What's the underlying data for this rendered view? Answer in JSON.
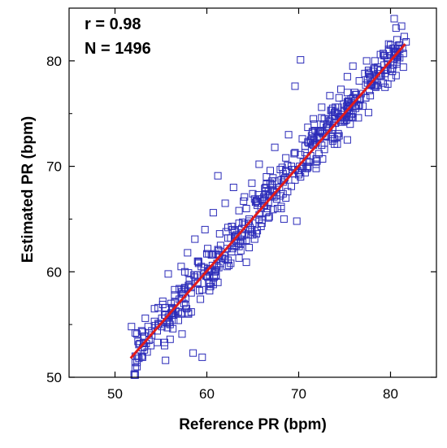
{
  "chart_data": {
    "type": "scatter",
    "title": "",
    "xlabel": "Reference PR (bpm)",
    "ylabel": "Estimated PR (bpm)",
    "xlim": [
      45,
      85
    ],
    "ylim": [
      50,
      85
    ],
    "xticks": [
      50,
      60,
      70,
      80
    ],
    "yticks": [
      50,
      60,
      70,
      80
    ],
    "annotations": [
      "r = 0.98",
      "N = 1496"
    ],
    "marker": "open-square",
    "marker_color": "#2b2bb8",
    "line_color": "#e01b1b",
    "regression_line": {
      "x": [
        51.7,
        81.6
      ],
      "y": [
        51.8,
        81.6
      ]
    },
    "n_points": 1496,
    "points": [
      [
        51.8,
        54.8
      ],
      [
        52.5,
        53.4
      ],
      [
        53.0,
        51.9
      ],
      [
        53.3,
        55.6
      ],
      [
        53.9,
        53.0
      ],
      [
        54.3,
        56.5
      ],
      [
        54.8,
        55.0
      ],
      [
        55.2,
        57.2
      ],
      [
        55.4,
        53.3
      ],
      [
        55.5,
        51.6
      ],
      [
        55.8,
        59.8
      ],
      [
        56.2,
        56.6
      ],
      [
        56.5,
        58.3
      ],
      [
        56.9,
        55.4
      ],
      [
        57.2,
        60.5
      ],
      [
        57.3,
        54.1
      ],
      [
        57.5,
        57.0
      ],
      [
        57.9,
        61.8
      ],
      [
        58.1,
        58.8
      ],
      [
        58.3,
        56.2
      ],
      [
        58.5,
        52.3
      ],
      [
        58.7,
        63.1
      ],
      [
        58.9,
        59.7
      ],
      [
        59.1,
        61.0
      ],
      [
        59.3,
        57.4
      ],
      [
        59.5,
        51.9
      ],
      [
        59.8,
        64.0
      ],
      [
        60.1,
        62.2
      ],
      [
        60.4,
        58.6
      ],
      [
        60.7,
        65.6
      ],
      [
        60.9,
        60.0
      ],
      [
        61.2,
        69.1
      ],
      [
        61.4,
        63.6
      ],
      [
        61.7,
        61.3
      ],
      [
        62.0,
        66.5
      ],
      [
        62.3,
        64.2
      ],
      [
        62.6,
        60.8
      ],
      [
        62.9,
        68.0
      ],
      [
        63.2,
        62.5
      ],
      [
        63.5,
        65.8
      ],
      [
        63.8,
        63.4
      ],
      [
        64.1,
        67.1
      ],
      [
        64.3,
        60.9
      ],
      [
        64.6,
        65.0
      ],
      [
        64.9,
        68.4
      ],
      [
        65.2,
        63.1
      ],
      [
        65.4,
        66.7
      ],
      [
        65.7,
        70.2
      ],
      [
        66.0,
        64.6
      ],
      [
        66.3,
        67.9
      ],
      [
        66.5,
        69.0
      ],
      [
        66.8,
        65.2
      ],
      [
        67.1,
        68.6
      ],
      [
        67.4,
        71.8
      ],
      [
        67.7,
        66.0
      ],
      [
        68.0,
        69.7
      ],
      [
        68.3,
        67.4
      ],
      [
        68.6,
        70.8
      ],
      [
        68.9,
        73.0
      ],
      [
        69.2,
        68.1
      ],
      [
        69.5,
        71.2
      ],
      [
        69.6,
        77.6
      ],
      [
        69.8,
        64.8
      ],
      [
        70.1,
        70.0
      ],
      [
        70.2,
        80.1
      ],
      [
        70.4,
        72.6
      ],
      [
        70.7,
        69.4
      ],
      [
        71.0,
        73.7
      ],
      [
        71.3,
        71.0
      ],
      [
        71.6,
        74.5
      ],
      [
        71.9,
        70.2
      ],
      [
        72.2,
        72.8
      ],
      [
        72.5,
        75.6
      ],
      [
        72.8,
        71.6
      ],
      [
        73.1,
        74.0
      ],
      [
        73.4,
        76.7
      ],
      [
        73.7,
        72.4
      ],
      [
        74.0,
        75.2
      ],
      [
        74.3,
        73.1
      ],
      [
        74.6,
        77.3
      ],
      [
        74.9,
        75.9
      ],
      [
        75.3,
        78.5
      ],
      [
        75.6,
        74.0
      ],
      [
        75.9,
        79.5
      ],
      [
        76.3,
        76.8
      ],
      [
        76.6,
        78.1
      ],
      [
        77.0,
        75.7
      ],
      [
        77.4,
        80.0
      ],
      [
        77.7,
        77.2
      ],
      [
        78.1,
        79.0
      ],
      [
        78.5,
        78.2
      ],
      [
        78.9,
        80.6
      ],
      [
        79.3,
        79.6
      ],
      [
        79.8,
        81.1
      ],
      [
        80.4,
        84.0
      ],
      [
        80.8,
        80.5
      ],
      [
        81.3,
        81.2
      ],
      [
        81.7,
        81.8
      ]
    ]
  }
}
